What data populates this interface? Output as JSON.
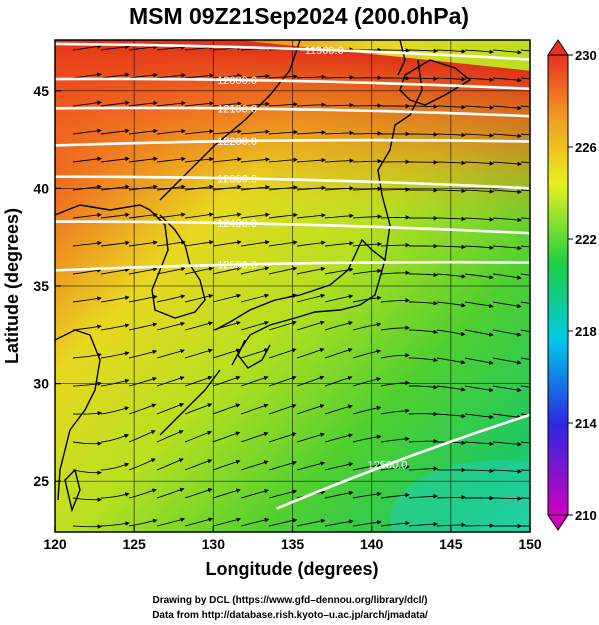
{
  "title": "MSM 09Z21Sep2024 (200.0hPa)",
  "x_axis": {
    "label": "Longitude (degrees)",
    "range": [
      120,
      150
    ],
    "ticks": [
      "120",
      "125",
      "130",
      "135",
      "140",
      "145",
      "150"
    ]
  },
  "y_axis": {
    "label": "Latitude (degrees)",
    "range": [
      22.4,
      47.6
    ],
    "ticks": [
      "25",
      "30",
      "35",
      "40",
      "45"
    ]
  },
  "colorbar": {
    "range": [
      210,
      230
    ],
    "ticks": [
      "230",
      "226",
      "222",
      "218",
      "214",
      "210"
    ],
    "colors": [
      "#d000c0",
      "#2a2ae0",
      "#00c8e8",
      "#20d040",
      "#e8f020",
      "#f0a020",
      "#e83020"
    ]
  },
  "contours": [
    {
      "label": "11900.0",
      "lat_start": 47.4,
      "lat_end": 46.6
    },
    {
      "label": "12000.0",
      "lat_start": 45.6,
      "lat_end": 45.1
    },
    {
      "label": "12100.0",
      "lat_start": 44.1,
      "lat_end": 43.7
    },
    {
      "label": "12200.0",
      "lat_start": 42.2,
      "lat_end": 42.4
    },
    {
      "label": "12300.0",
      "lat_start": 40.6,
      "lat_end": 40.0
    },
    {
      "label": "12400.0",
      "lat_start": 38.3,
      "lat_end": 37.7
    },
    {
      "label": "12500.0",
      "lat_start": 35.8,
      "lat_end": 36.2
    },
    {
      "label": "12500.0",
      "lat_start": 23.6,
      "lat_end": 28.4
    }
  ],
  "credits": {
    "line1": "Drawing by DCL (https://www.gfd–dennou.org/library/dcl/)",
    "line2": "Data from http://database.rish.kyoto–u.ac.jp/arch/jmadata/"
  }
}
